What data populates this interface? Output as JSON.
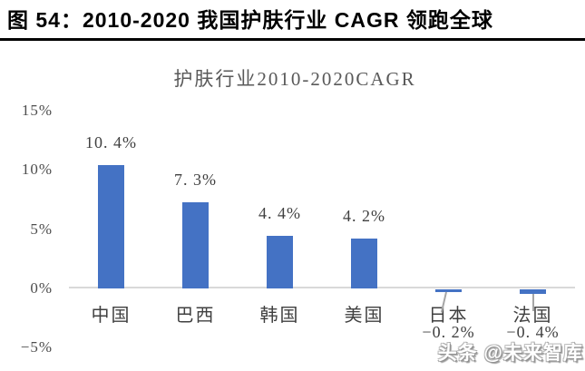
{
  "header": {
    "title": "图 54：2010-2020 我国护肤行业 CAGR 领跑全球"
  },
  "watermark": {
    "text": "头条 @未来智库"
  },
  "chart_data": {
    "type": "bar",
    "title": "护肤行业2010-2020CAGR",
    "categories": [
      "中国",
      "巴西",
      "韩国",
      "美国",
      "日本",
      "法国"
    ],
    "values": [
      10.4,
      7.3,
      4.4,
      4.2,
      -0.2,
      -0.4
    ],
    "value_labels": [
      "10. 4%",
      "7. 3%",
      "4. 4%",
      "4. 2%",
      "−0. 2%",
      "−0. 4%"
    ],
    "xlabel": "",
    "ylabel": "",
    "y_axis": {
      "tick_values": [
        15,
        10,
        5,
        0,
        -5
      ],
      "tick_labels": [
        "15%",
        "10%",
        "5%",
        "0%",
        "−5%"
      ],
      "min": -5,
      "max": 15
    },
    "grid": false,
    "legend": false,
    "bar_color": "#4472C4",
    "axis_line_color": "#D9D9D9",
    "label_color": "#404040",
    "title_color": "#595959"
  }
}
